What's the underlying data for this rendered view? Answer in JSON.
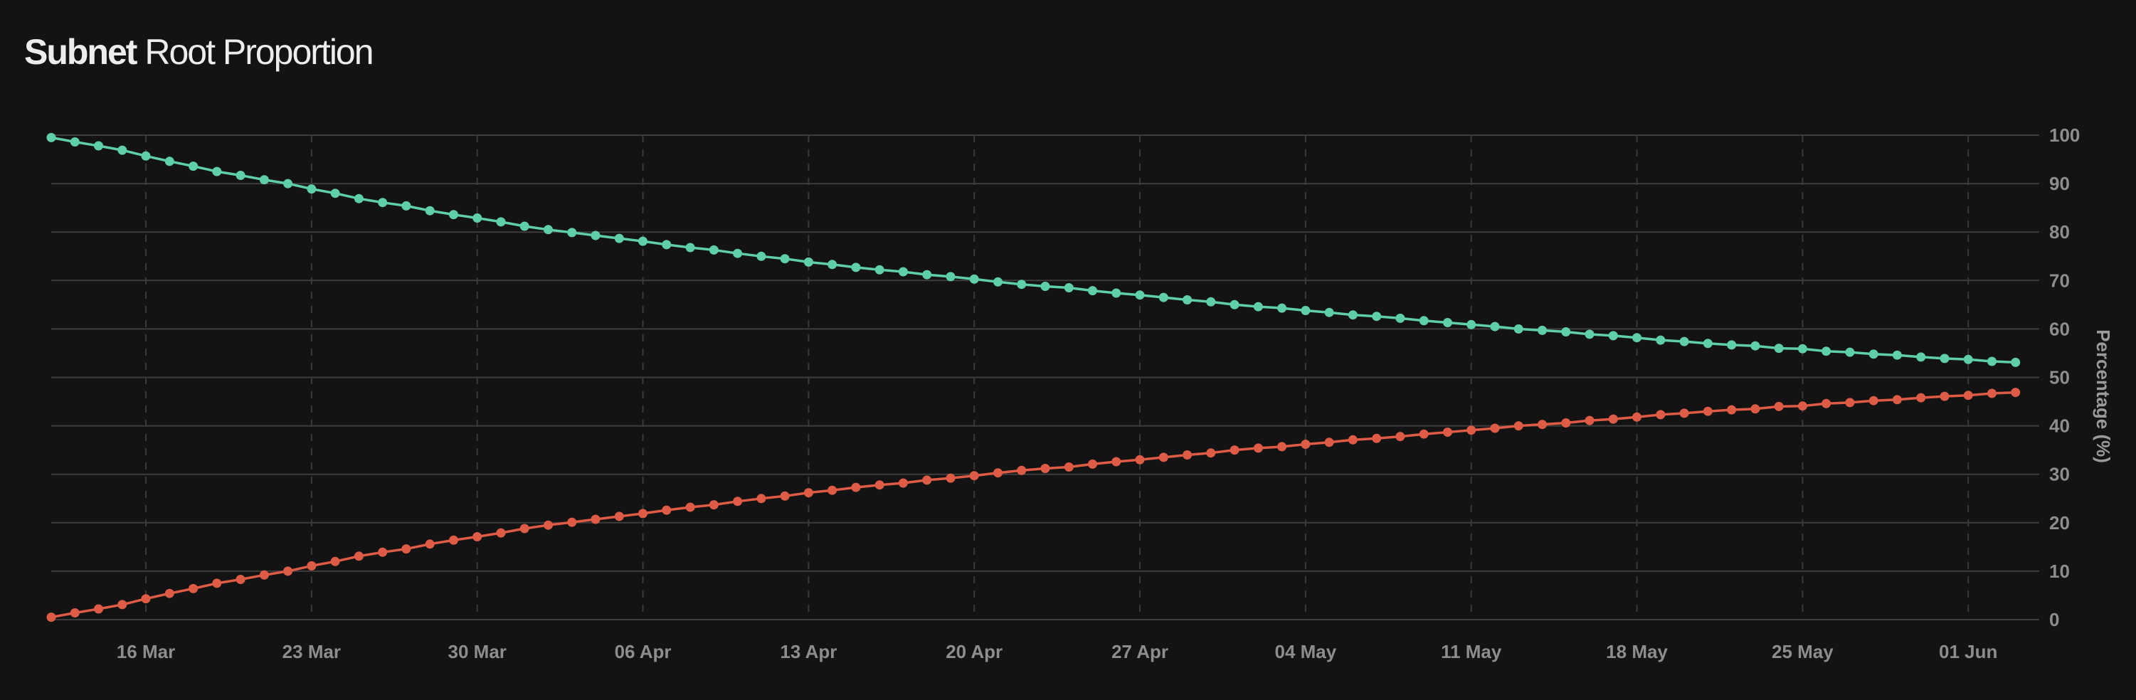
{
  "header": {
    "title_bold": "Subnet",
    "title_rest": "Root Proportion"
  },
  "chart_data": {
    "type": "line",
    "title": "Subnet Root Proportion",
    "xlabel": "",
    "ylabel": "Percentage (%)",
    "y_axis_side": "right",
    "ylim": [
      0,
      100
    ],
    "yticks": [
      0,
      10,
      20,
      30,
      40,
      50,
      60,
      70,
      80,
      90,
      100
    ],
    "xlim": [
      "2025-03-12",
      "2025-06-04"
    ],
    "xticks": [
      "2025-03-16",
      "2025-03-23",
      "2025-03-30",
      "2025-04-06",
      "2025-04-13",
      "2025-04-20",
      "2025-04-27",
      "2025-05-04",
      "2025-05-11",
      "2025-05-18",
      "2025-05-25",
      "2025-06-01"
    ],
    "xtick_labels": [
      "16 Mar",
      "23 Mar",
      "30 Mar",
      "06 Apr",
      "13 Apr",
      "20 Apr",
      "27 Apr",
      "04 May",
      "11 May",
      "18 May",
      "25 May",
      "01 Jun"
    ],
    "grid": {
      "horizontal": "solid",
      "vertical": "dashed"
    },
    "legend": "none",
    "x": [
      "2025-03-12",
      "2025-03-13",
      "2025-03-14",
      "2025-03-15",
      "2025-03-16",
      "2025-03-17",
      "2025-03-18",
      "2025-03-19",
      "2025-03-20",
      "2025-03-21",
      "2025-03-22",
      "2025-03-23",
      "2025-03-24",
      "2025-03-25",
      "2025-03-26",
      "2025-03-27",
      "2025-03-28",
      "2025-03-29",
      "2025-03-30",
      "2025-03-31",
      "2025-04-01",
      "2025-04-02",
      "2025-04-03",
      "2025-04-04",
      "2025-04-05",
      "2025-04-06",
      "2025-04-07",
      "2025-04-08",
      "2025-04-09",
      "2025-04-10",
      "2025-04-11",
      "2025-04-12",
      "2025-04-13",
      "2025-04-14",
      "2025-04-15",
      "2025-04-16",
      "2025-04-17",
      "2025-04-18",
      "2025-04-19",
      "2025-04-20",
      "2025-04-21",
      "2025-04-22",
      "2025-04-23",
      "2025-04-24",
      "2025-04-25",
      "2025-04-26",
      "2025-04-27",
      "2025-04-28",
      "2025-04-29",
      "2025-04-30",
      "2025-05-01",
      "2025-05-02",
      "2025-05-03",
      "2025-05-04",
      "2025-05-05",
      "2025-05-06",
      "2025-05-07",
      "2025-05-08",
      "2025-05-09",
      "2025-05-10",
      "2025-05-11",
      "2025-05-12",
      "2025-05-13",
      "2025-05-14",
      "2025-05-15",
      "2025-05-16",
      "2025-05-17",
      "2025-05-18",
      "2025-05-19",
      "2025-05-20",
      "2025-05-21",
      "2025-05-22",
      "2025-05-23",
      "2025-05-24",
      "2025-05-25",
      "2025-05-26",
      "2025-05-27",
      "2025-05-28",
      "2025-05-29",
      "2025-05-30",
      "2025-05-31",
      "2025-06-01",
      "2025-06-02",
      "2025-06-03"
    ],
    "series": [
      {
        "color": "#5fcfa8",
        "values": [
          99.5,
          98.6,
          97.8,
          96.9,
          95.7,
          94.6,
          93.6,
          92.5,
          91.7,
          90.8,
          90.0,
          88.9,
          88.0,
          86.9,
          86.1,
          85.4,
          84.4,
          83.6,
          82.9,
          82.1,
          81.2,
          80.5,
          79.9,
          79.3,
          78.7,
          78.1,
          77.4,
          76.8,
          76.3,
          75.6,
          75.0,
          74.5,
          73.8,
          73.3,
          72.7,
          72.2,
          71.8,
          71.2,
          70.8,
          70.3,
          69.7,
          69.2,
          68.8,
          68.5,
          67.9,
          67.4,
          67.0,
          66.5,
          66.0,
          65.6,
          65.0,
          64.6,
          64.3,
          63.8,
          63.4,
          62.9,
          62.6,
          62.2,
          61.7,
          61.3,
          60.9,
          60.5,
          60.0,
          59.7,
          59.4,
          58.9,
          58.6,
          58.2,
          57.7,
          57.4,
          57.0,
          56.7,
          56.5,
          56.0,
          55.9,
          55.4,
          55.2,
          54.8,
          54.6,
          54.2,
          53.9,
          53.7,
          53.3,
          53.1
        ]
      },
      {
        "color": "#de5b45",
        "values": [
          0.5,
          1.4,
          2.2,
          3.1,
          4.3,
          5.4,
          6.4,
          7.5,
          8.3,
          9.2,
          10.0,
          11.1,
          12.0,
          13.1,
          13.9,
          14.6,
          15.6,
          16.4,
          17.1,
          17.9,
          18.8,
          19.5,
          20.1,
          20.7,
          21.3,
          21.9,
          22.6,
          23.2,
          23.7,
          24.4,
          25.0,
          25.5,
          26.2,
          26.7,
          27.3,
          27.8,
          28.2,
          28.8,
          29.2,
          29.7,
          30.3,
          30.8,
          31.2,
          31.5,
          32.1,
          32.6,
          33.0,
          33.5,
          34.0,
          34.4,
          35.0,
          35.4,
          35.7,
          36.2,
          36.6,
          37.1,
          37.4,
          37.8,
          38.3,
          38.7,
          39.1,
          39.5,
          40.0,
          40.3,
          40.6,
          41.1,
          41.4,
          41.8,
          42.3,
          42.6,
          43.0,
          43.3,
          43.5,
          44.0,
          44.1,
          44.6,
          44.8,
          45.2,
          45.4,
          45.8,
          46.1,
          46.3,
          46.7,
          46.9
        ]
      }
    ]
  }
}
